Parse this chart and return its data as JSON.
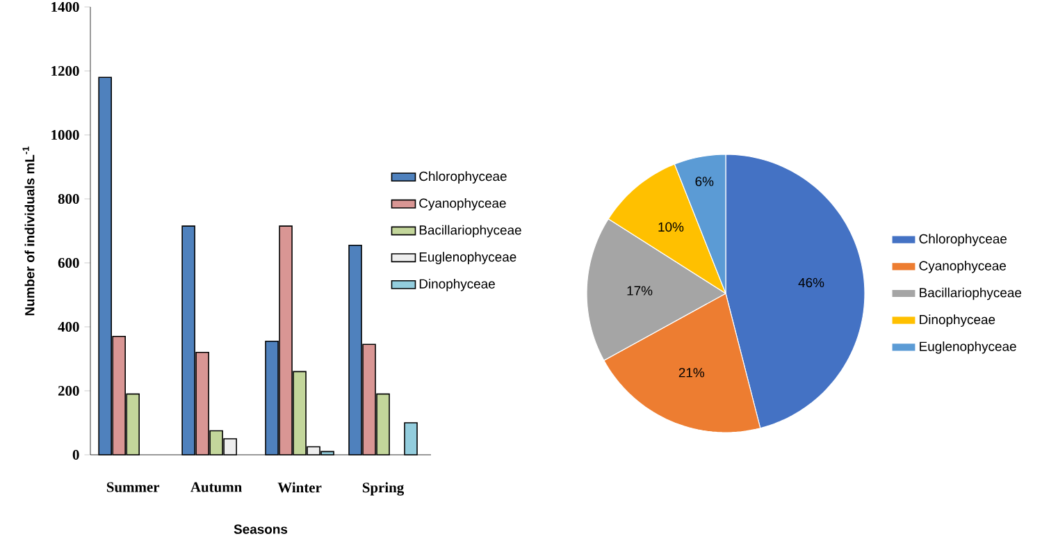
{
  "chart_data": [
    {
      "type": "bar",
      "ylabel": "Number of individuals mL$^{-1}$",
      "xlabel": "Seasons",
      "categories": [
        "Summer",
        "Autumn",
        "Winter",
        "Spring"
      ],
      "series": [
        {
          "name": "Chlorophyceae",
          "color": "#4f81bd",
          "values": [
            1180,
            715,
            355,
            655
          ]
        },
        {
          "name": "Cyanophyceae",
          "color": "#d99694",
          "values": [
            370,
            320,
            715,
            345
          ]
        },
        {
          "name": "Bacillariophyceae",
          "color": "#c3d69b",
          "values": [
            190,
            75,
            260,
            190
          ]
        },
        {
          "name": "Euglenophyceae",
          "color": "#eeeeee",
          "values": [
            null,
            50,
            25,
            null
          ]
        },
        {
          "name": "Dinophyceae",
          "color": "#93cddd",
          "values": [
            null,
            null,
            10,
            100
          ]
        }
      ],
      "ylim": [
        0,
        1400
      ],
      "yticks": [
        0,
        200,
        400,
        600,
        800,
        1000,
        1200,
        1400
      ],
      "legend": "right"
    },
    {
      "type": "pie",
      "categories": [
        "Chlorophyceae",
        "Cyanophyceae",
        "Bacillariophyceae",
        "Dinophyceae",
        "Euglenophyceae"
      ],
      "values": [
        46,
        21,
        17,
        10,
        6
      ],
      "colors": [
        "#4472c4",
        "#ed7d31",
        "#a5a5a5",
        "#ffc000",
        "#5b9bd5"
      ],
      "value_labels": [
        "46%",
        "21%",
        "17%",
        "10%",
        "6%"
      ],
      "legend": "right"
    }
  ]
}
